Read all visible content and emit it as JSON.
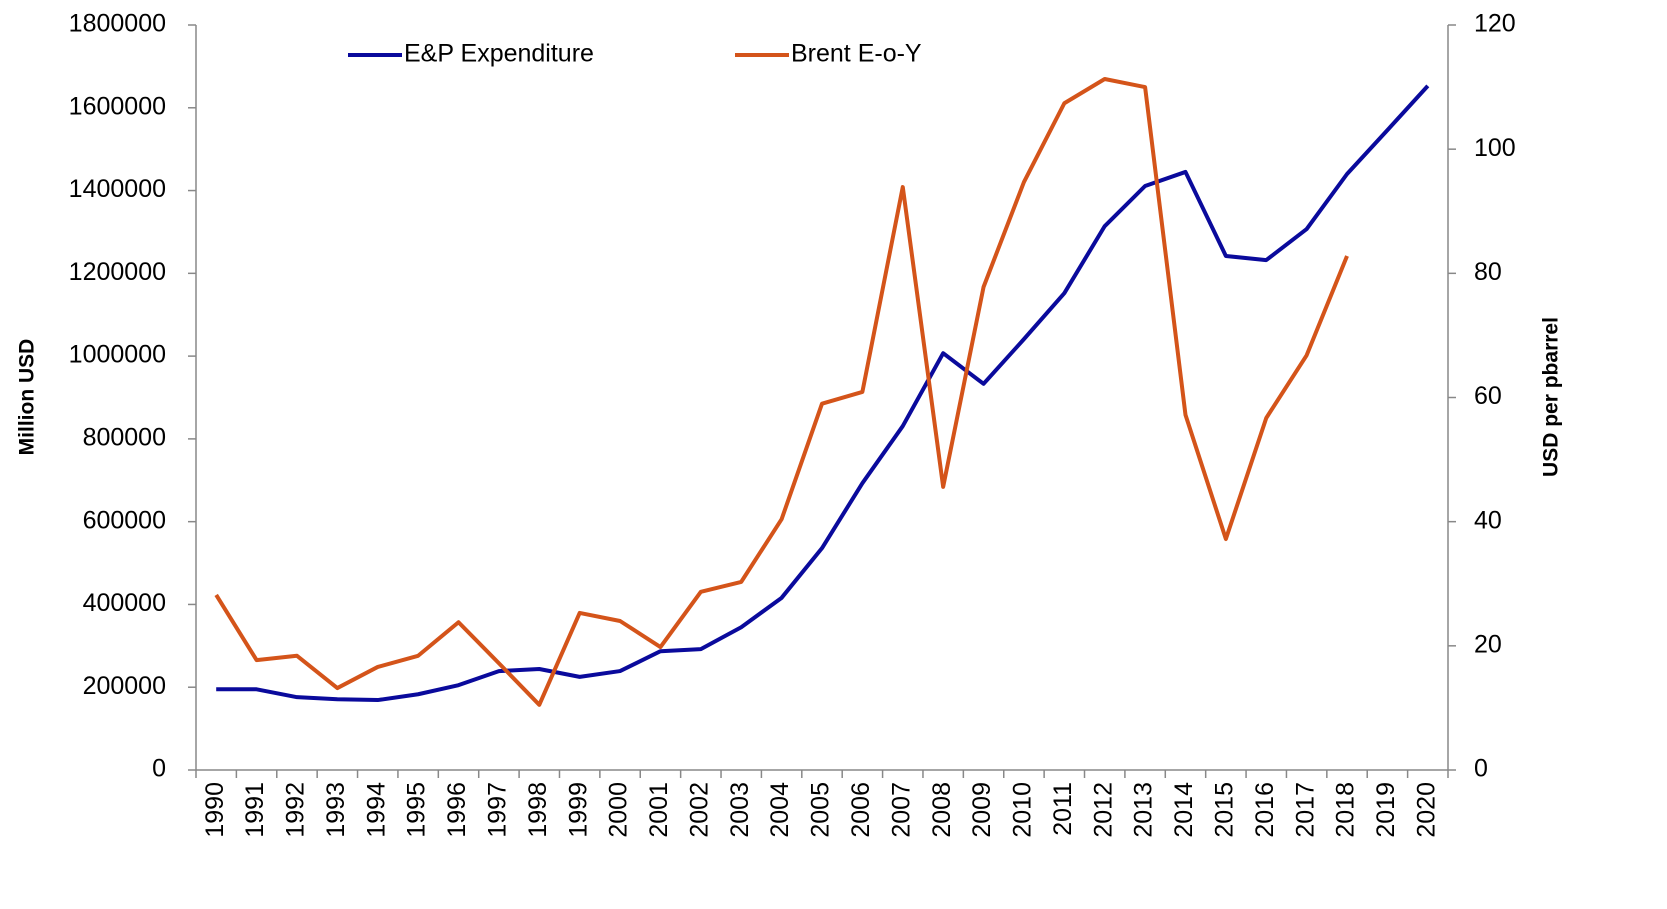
{
  "chart_data": {
    "type": "line",
    "y_label": "Million USD",
    "y2_label": "USD per pbarrel",
    "categories": [
      "1990",
      "1991",
      "1992",
      "1993",
      "1994",
      "1995",
      "1996",
      "1997",
      "1998",
      "1999",
      "2000",
      "2001",
      "2002",
      "2003",
      "2004",
      "2005",
      "2006",
      "2007",
      "2008",
      "2009",
      "2010",
      "2011",
      "2012",
      "2013",
      "2014",
      "2015",
      "2016",
      "2017",
      "2018",
      "2019",
      "2020"
    ],
    "series": [
      {
        "name": "E&P Expenditure",
        "color": "#0a0a9c",
        "values": [
          195000,
          195000,
          176000,
          171000,
          169000,
          183000,
          205000,
          239000,
          244000,
          225000,
          239000,
          287000,
          292000,
          345000,
          416000,
          536000,
          693000,
          831000,
          1007000,
          933000,
          1041000,
          1152000,
          1314000,
          1411000,
          1445000,
          1242000,
          1232000,
          1307000,
          1440000,
          1546000,
          1653000
        ]
      },
      {
        "name": "Brent E-o-Y",
        "color": "#d4541a",
        "axis": "y2",
        "values": [
          28.2,
          17.7,
          18.4,
          13.2,
          16.6,
          18.4,
          23.8,
          17.2,
          10.5,
          25.3,
          24.0,
          19.8,
          28.7,
          30.3,
          40.4,
          59.0,
          60.9,
          93.9,
          45.6,
          77.8,
          94.7,
          107.4,
          111.3,
          110.0,
          57.2,
          37.2,
          56.7,
          66.8,
          82.8,
          null,
          null
        ]
      }
    ],
    "ylim": [
      0,
      1800000
    ],
    "yticks": [
      0,
      200000,
      400000,
      600000,
      800000,
      1000000,
      1200000,
      1400000,
      1600000,
      1800000
    ],
    "y2lim": [
      0,
      120
    ],
    "y2ticks": [
      0,
      20,
      40,
      60,
      80,
      100,
      120
    ],
    "legend": "top"
  }
}
